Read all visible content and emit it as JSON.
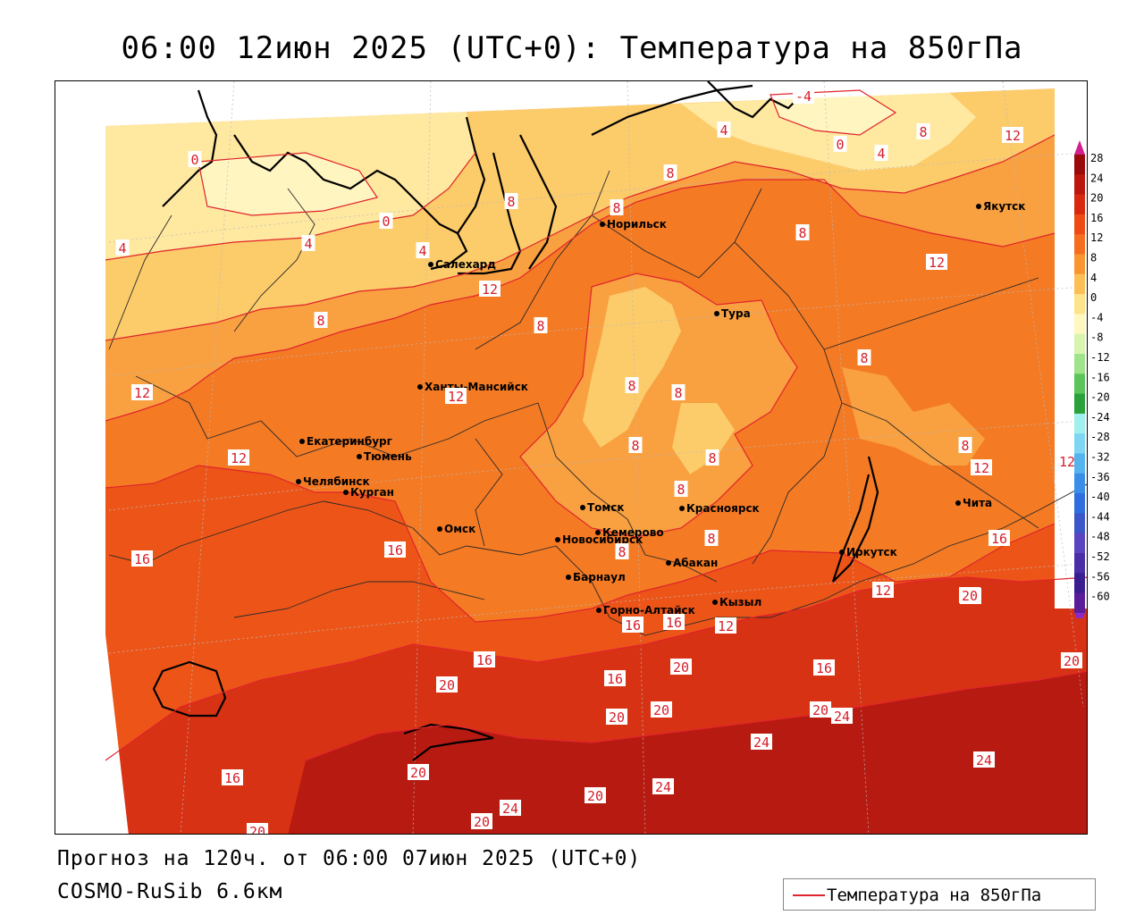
{
  "title": "06:00 12июн 2025 (UTC+0): Температура на 850гПа",
  "forecast_text": "Прогноз на 120ч. от 06:00 07июн 2025 (UTC+0)",
  "model_text": "COSMO-RuSib 6.6км",
  "legend_label": "Температура на 850гПа",
  "colors": {
    "isoline": "#e0242c",
    "t_lt0": "#fff5c0",
    "t_0_4": "#ffe8a0",
    "t_4_8": "#fccb6a",
    "t_8_12": "#f9a040",
    "t_12_16": "#f47a24",
    "t_16_20": "#ed5518",
    "t_20_24": "#d83214",
    "t_24_28": "#b71a10"
  },
  "colorbar": {
    "labels": [
      "28",
      "24",
      "20",
      "16",
      "12",
      "8",
      "4",
      "0",
      "-4",
      "-8",
      "-12",
      "-16",
      "-20",
      "-24",
      "-28",
      "-32",
      "-36",
      "-40",
      "-44",
      "-48",
      "-52",
      "-56",
      "-60"
    ],
    "colors": [
      "#9a0a0a",
      "#bd160c",
      "#d8290f",
      "#ee4a14",
      "#f66d1f",
      "#f9962f",
      "#fbbf55",
      "#fde48a",
      "#fff8c0",
      "#d8f5b0",
      "#9fe38a",
      "#5cc55a",
      "#2aa13a",
      "#9ff0ee",
      "#7fd6f2",
      "#55b4ee",
      "#3a8ee8",
      "#2f6ee0",
      "#3a56c8",
      "#5a44c0",
      "#4a2ea8",
      "#3a1e90",
      "#5a1c9a"
    ]
  },
  "cities": [
    {
      "name": "Салехард"
    },
    {
      "name": "Норильск"
    },
    {
      "name": "Якутск"
    },
    {
      "name": "Тура"
    },
    {
      "name": "Ханты-Мансийск"
    },
    {
      "name": "Екатеринбург"
    },
    {
      "name": "Тюмень"
    },
    {
      "name": "Челябинск"
    },
    {
      "name": "Курган"
    },
    {
      "name": "Омск"
    },
    {
      "name": "Новосибирск"
    },
    {
      "name": "Томск"
    },
    {
      "name": "Кемерово"
    },
    {
      "name": "Красноярск"
    },
    {
      "name": "Абакан"
    },
    {
      "name": "Барнаул"
    },
    {
      "name": "Горно-Алтайск"
    },
    {
      "name": "Кызыл"
    },
    {
      "name": "Иркутск"
    },
    {
      "name": "Чита"
    }
  ],
  "isoline_labels": [
    "-4",
    "4",
    "0",
    "4",
    "8",
    "12",
    "0",
    "0",
    "4",
    "4",
    "4",
    "8",
    "8",
    "8",
    "8",
    "12",
    "12",
    "8",
    "8",
    "12",
    "8",
    "8",
    "8",
    "8",
    "8",
    "8",
    "8",
    "8",
    "8",
    "12",
    "12",
    "12",
    "12",
    "16",
    "16",
    "16",
    "12",
    "16",
    "16",
    "20",
    "12",
    "20",
    "16",
    "16",
    "16",
    "20",
    "20",
    "20",
    "20",
    "20",
    "20",
    "24",
    "24",
    "24",
    "20",
    "20",
    "24",
    "20",
    "16",
    "24",
    "20"
  ]
}
